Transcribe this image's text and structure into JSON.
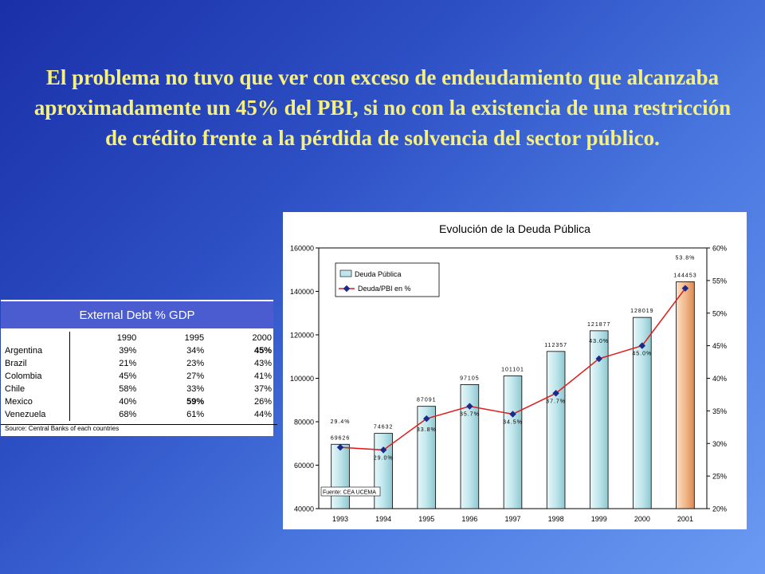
{
  "slide": {
    "title": "El problema no tuvo que ver con exceso de endeudamiento que alcanzaba aproximadamente un 45% del PBI, si no con la existencia de una restricción de crédito frente a la pérdida de solvencia del sector público."
  },
  "debt_table": {
    "header": "External Debt % GDP",
    "years": [
      "1990",
      "1995",
      "2000"
    ],
    "rows": [
      {
        "country": "Argentina",
        "values": [
          "39%",
          "34%",
          "45%"
        ],
        "bold": [
          false,
          false,
          true
        ]
      },
      {
        "country": "Brazil",
        "values": [
          "21%",
          "23%",
          "43%"
        ],
        "bold": [
          false,
          false,
          false
        ]
      },
      {
        "country": "Colombia",
        "values": [
          "45%",
          "27%",
          "41%"
        ],
        "bold": [
          false,
          false,
          false
        ]
      },
      {
        "country": "Chile",
        "values": [
          "58%",
          "33%",
          "37%"
        ],
        "bold": [
          false,
          false,
          false
        ]
      },
      {
        "country": "Mexico",
        "values": [
          "40%",
          "59%",
          "26%"
        ],
        "bold": [
          false,
          true,
          false
        ]
      },
      {
        "country": "Venezuela",
        "values": [
          "68%",
          "61%",
          "44%"
        ],
        "bold": [
          false,
          false,
          false
        ]
      }
    ],
    "source": "Source: Central Banks of each countries"
  },
  "chart_data": {
    "type": "bar",
    "title": "Evolución de la Deuda Pública",
    "categories": [
      "1993",
      "1994",
      "1995",
      "1996",
      "1997",
      "1998",
      "1999",
      "2000",
      "2001"
    ],
    "series": [
      {
        "name": "Deuda Pública",
        "type": "bar",
        "axis": "left",
        "values": [
          69626,
          74632,
          87091,
          97105,
          101101,
          112357,
          121877,
          128019,
          144453
        ],
        "labels": [
          "69626",
          "74632",
          "87091",
          "97105",
          "101101",
          "112357",
          "121877",
          "128019",
          "144453"
        ]
      },
      {
        "name": "Deuda/PBI en %",
        "type": "line",
        "axis": "right",
        "values": [
          29.4,
          29.0,
          33.8,
          35.7,
          34.5,
          37.7,
          43.0,
          45.0,
          53.8
        ],
        "labels": [
          "29.4%",
          "29.0%",
          "33.8%",
          "35.7%",
          "34.5%",
          "37.7%",
          "43.0%",
          "45.0%",
          "53.8%"
        ]
      }
    ],
    "y_left": {
      "min": 40000,
      "max": 160000,
      "ticks": [
        "40000",
        "60000",
        "80000",
        "100000",
        "120000",
        "140000",
        "160000"
      ]
    },
    "y_right": {
      "min": 20,
      "max": 60,
      "ticks": [
        "20%",
        "25%",
        "30%",
        "35%",
        "40%",
        "45%",
        "50%",
        "55%",
        "60%"
      ]
    },
    "source_note": "Fuente: CEA UCEMA",
    "legend_position": "top-left",
    "colors": {
      "bar": "#bfe6ec",
      "bar_last": "#f2b88a",
      "line": "#e01b1b",
      "marker": "#1a2a8a"
    }
  }
}
